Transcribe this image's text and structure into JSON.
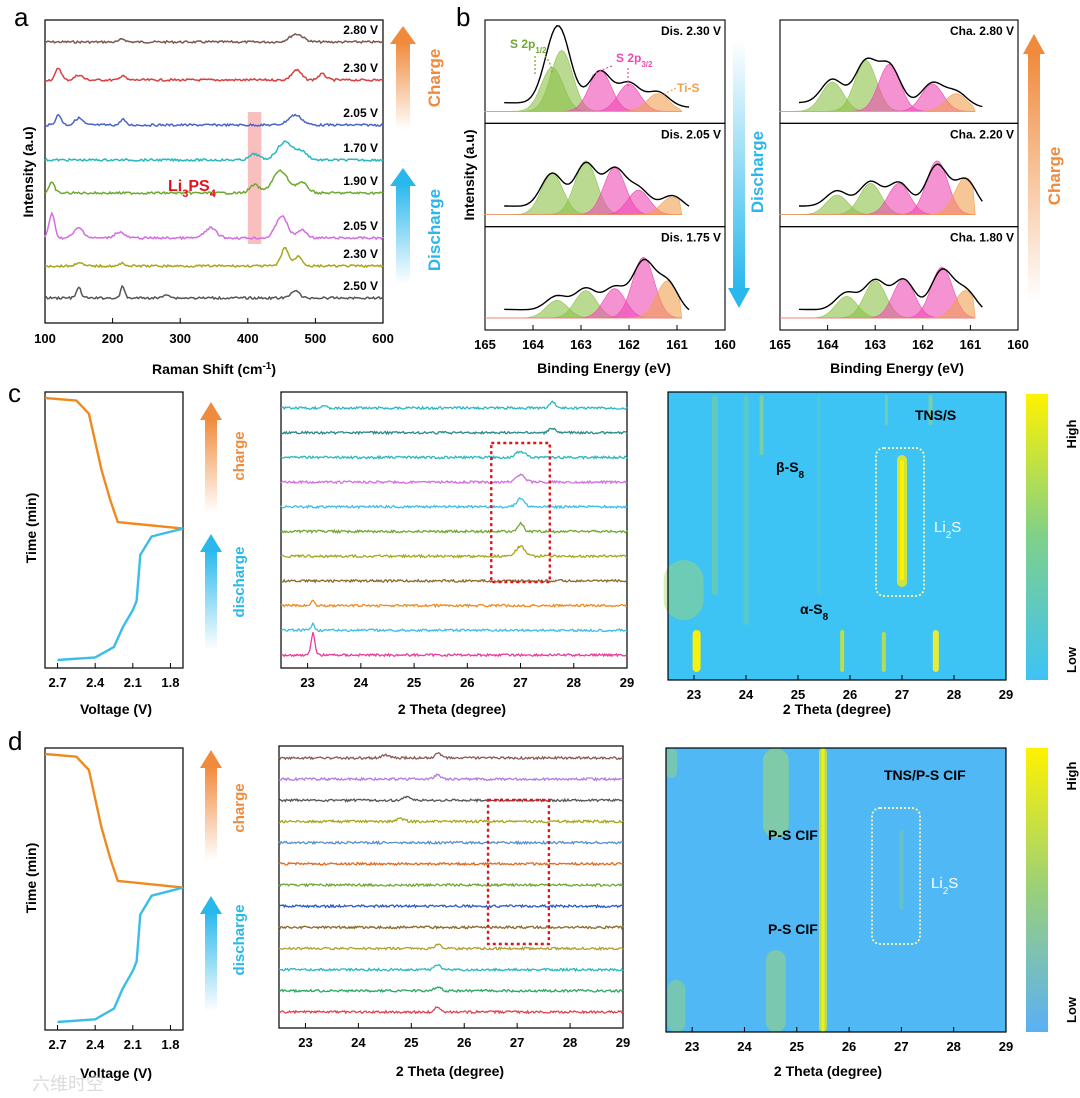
{
  "panel_letters": {
    "a": "a",
    "b": "b",
    "c": "c",
    "d": "d"
  },
  "arrows": {
    "charge_cap": "Charge",
    "discharge_cap": "Discharge",
    "charge_lc": "charge",
    "discharge_lc": "discharge"
  },
  "colors": {
    "charge_arrow": "#f08a3c",
    "discharge_arrow": "#2ab8ec",
    "heat_low": "#3ec3f5",
    "heat_high": "#fff200",
    "box_red": "#e0141c",
    "li3ps4_highlight": "#f7a9a9"
  },
  "watermark": "六维时空",
  "chart_data": [
    {
      "id": "a",
      "type": "line",
      "xlabel": "Raman Shift (cm",
      "xlabel_sup": "-1",
      "xlabel_end": ")",
      "ylabel": "Intensity (a.u)",
      "xlim": [
        100,
        600
      ],
      "xticks": [
        100,
        200,
        300,
        400,
        500,
        600
      ],
      "annotation": "Li3PS4",
      "annotation_main": "Li",
      "annotation_sub1": "3",
      "annotation_mid": "PS",
      "annotation_sub2": "4",
      "highlight_x": [
        400,
        420
      ],
      "series": [
        {
          "label": "2.80 V",
          "color": "#7a5a50",
          "peaks": [
            [
              215,
              3,
              6
            ],
            [
              472,
              8,
              14
            ]
          ]
        },
        {
          "label": "2.30 V",
          "color": "#d84040",
          "peaks": [
            [
              120,
              12,
              6
            ],
            [
              150,
              5,
              8
            ],
            [
              215,
              5,
              5
            ],
            [
              472,
              10,
              10
            ],
            [
              510,
              6,
              8
            ]
          ]
        },
        {
          "label": "2.05 V",
          "color": "#4866c8",
          "peaks": [
            [
              120,
              10,
              6
            ],
            [
              150,
              7,
              8
            ],
            [
              215,
              6,
              5
            ],
            [
              470,
              10,
              14
            ]
          ]
        },
        {
          "label": "1.70 V",
          "color": "#29b8c0",
          "peaks": [
            [
              410,
              6,
              10
            ],
            [
              455,
              18,
              16
            ],
            [
              480,
              8,
              12
            ]
          ]
        },
        {
          "label": "1.90 V",
          "color": "#6ea830",
          "peaks": [
            [
              110,
              10,
              6
            ],
            [
              410,
              8,
              10
            ],
            [
              448,
              22,
              16
            ],
            [
              480,
              10,
              12
            ]
          ]
        },
        {
          "label": "2.05 V",
          "color": "#d36ee0",
          "peaks": [
            [
              110,
              24,
              6
            ],
            [
              150,
              10,
              10
            ],
            [
              210,
              6,
              10
            ],
            [
              345,
              10,
              12
            ],
            [
              450,
              22,
              12
            ],
            [
              480,
              8,
              10
            ]
          ]
        },
        {
          "label": "2.30 V",
          "color": "#a8a61a",
          "peaks": [
            [
              150,
              4,
              6
            ],
            [
              215,
              3,
              5
            ],
            [
              455,
              18,
              8
            ],
            [
              475,
              10,
              8
            ]
          ]
        },
        {
          "label": "2.50 V",
          "color": "#555555",
          "peaks": [
            [
              150,
              10,
              5
            ],
            [
              215,
              12,
              4
            ],
            [
              280,
              4,
              6
            ],
            [
              470,
              8,
              8
            ]
          ]
        }
      ]
    },
    {
      "id": "b",
      "type": "area",
      "xlabel": "Binding Energy (eV)",
      "ylabel": "Intensity (a.u)",
      "xlim": [
        165,
        160
      ],
      "xticks": [
        165,
        164,
        163,
        162,
        161,
        160
      ],
      "label_s2p12": "S 2p",
      "label_s2p12_sub": "1/2",
      "label_s2p32": "S 2p",
      "label_s2p32_sub": "3/2",
      "label_tis": "Ti-S",
      "component_colors": {
        "s2p12": "#8cc24a",
        "s2p32": "#ee4ab4",
        "tis": "#f2a050"
      },
      "left": [
        {
          "label": "Dis. 2.30 V",
          "components": [
            [
              163.6,
              0.45
            ],
            [
              163.4,
              0.62
            ],
            [
              162.6,
              0.42
            ],
            [
              162.0,
              0.28
            ],
            [
              161.4,
              0.18
            ]
          ]
        },
        {
          "label": "Dis. 2.05 V",
          "components": [
            [
              163.6,
              0.42
            ],
            [
              162.9,
              0.55
            ],
            [
              162.3,
              0.48
            ],
            [
              161.8,
              0.25
            ],
            [
              161.1,
              0.18
            ]
          ]
        },
        {
          "label": "Dis. 1.75 V",
          "components": [
            [
              163.5,
              0.18
            ],
            [
              162.9,
              0.28
            ],
            [
              162.3,
              0.3
            ],
            [
              161.7,
              0.62
            ],
            [
              161.2,
              0.38
            ]
          ]
        }
      ],
      "right": [
        {
          "label": "Cha. 2.80 V",
          "components": [
            [
              163.9,
              0.3
            ],
            [
              163.2,
              0.52
            ],
            [
              162.7,
              0.48
            ],
            [
              161.8,
              0.28
            ],
            [
              161.3,
              0.18
            ]
          ]
        },
        {
          "label": "Cha. 2.20 V",
          "components": [
            [
              163.8,
              0.2
            ],
            [
              163.1,
              0.32
            ],
            [
              162.5,
              0.32
            ],
            [
              161.7,
              0.55
            ],
            [
              161.1,
              0.38
            ]
          ]
        },
        {
          "label": "Cha. 1.80 V",
          "components": [
            [
              163.6,
              0.22
            ],
            [
              163.0,
              0.38
            ],
            [
              162.4,
              0.4
            ],
            [
              161.6,
              0.52
            ],
            [
              161.1,
              0.28
            ]
          ]
        }
      ]
    },
    {
      "id": "c_voltage",
      "type": "line",
      "xlabel": "Voltage (V)",
      "ylabel": "Time (min)",
      "xlim": [
        2.8,
        1.7
      ],
      "xticks": [
        2.7,
        2.4,
        2.1,
        1.8
      ],
      "charge": [
        [
          2.8,
          0
        ],
        [
          2.55,
          0.02
        ],
        [
          2.45,
          0.12
        ],
        [
          2.35,
          0.55
        ],
        [
          2.28,
          0.78
        ],
        [
          2.22,
          0.95
        ],
        [
          1.7,
          1.0
        ]
      ],
      "discharge": [
        [
          1.7,
          0
        ],
        [
          1.95,
          0.06
        ],
        [
          2.04,
          0.2
        ],
        [
          2.07,
          0.55
        ],
        [
          2.1,
          0.62
        ],
        [
          2.18,
          0.75
        ],
        [
          2.25,
          0.9
        ],
        [
          2.4,
          0.98
        ],
        [
          2.7,
          1.0
        ]
      ]
    },
    {
      "id": "c_xrd",
      "type": "line",
      "xlabel": "2 Theta (degree)",
      "xlim": [
        22.5,
        29
      ],
      "xticks": [
        23,
        24,
        25,
        26,
        27,
        28,
        29
      ],
      "box_x": [
        26.45,
        27.55
      ],
      "colors": [
        "#e93a9a",
        "#3bbde8",
        "#ee8a1e",
        "#8a6a2a",
        "#a8a61a",
        "#6ea830",
        "#3bbde8",
        "#d36ee0",
        "#29b8c0",
        "#2a8a86",
        "#29b8c0"
      ],
      "peaks": [
        [
          [
            23.1,
            22,
            0.05
          ]
        ],
        [
          [
            23.1,
            6,
            0.05
          ]
        ],
        [
          [
            23.1,
            5,
            0.05
          ]
        ],
        [
          []
        ],
        [
          [
            27.0,
            10,
            0.12
          ]
        ],
        [
          [
            27.0,
            8,
            0.08
          ]
        ],
        [
          [
            27.0,
            8,
            0.1
          ]
        ],
        [
          [
            27.0,
            7,
            0.12
          ]
        ],
        [
          [
            27.0,
            6,
            0.12
          ]
        ],
        [
          [
            27.6,
            5,
            0.08
          ]
        ],
        [
          [
            27.6,
            6,
            0.08
          ],
          [
            23.3,
            3,
            0.06
          ]
        ]
      ]
    },
    {
      "id": "c_heatmap",
      "type": "heatmap",
      "xlabel": "2 Theta (degree)",
      "xlim": [
        22.5,
        29
      ],
      "xticks": [
        23,
        24,
        25,
        26,
        27,
        28,
        29
      ],
      "title": "TNS/S",
      "label_upper": "β-S",
      "label_upper_sub": "8",
      "label_lower": "α-S",
      "label_lower_sub": "8",
      "li2s": "Li",
      "li2s_sub": "2",
      "li2s_end": "S",
      "cbar_high": "High",
      "cbar_low": "Low"
    },
    {
      "id": "d_voltage",
      "type": "line",
      "xlabel": "Voltage (V)",
      "ylabel": "Time (min)",
      "xlim": [
        2.8,
        1.7
      ],
      "xticks": [
        2.7,
        2.4,
        2.1,
        1.8
      ],
      "charge": [
        [
          2.8,
          0
        ],
        [
          2.55,
          0.02
        ],
        [
          2.45,
          0.12
        ],
        [
          2.35,
          0.55
        ],
        [
          2.28,
          0.78
        ],
        [
          2.22,
          0.95
        ],
        [
          1.7,
          1.0
        ]
      ],
      "discharge": [
        [
          1.7,
          0
        ],
        [
          1.95,
          0.06
        ],
        [
          2.04,
          0.2
        ],
        [
          2.07,
          0.55
        ],
        [
          2.1,
          0.62
        ],
        [
          2.18,
          0.75
        ],
        [
          2.25,
          0.9
        ],
        [
          2.4,
          0.98
        ],
        [
          2.7,
          1.0
        ]
      ]
    },
    {
      "id": "d_xrd",
      "type": "line",
      "xlabel": "2 Theta (degree)",
      "xlim": [
        22.5,
        29
      ],
      "xticks": [
        23,
        24,
        25,
        26,
        27,
        28,
        29
      ],
      "box_x": [
        26.45,
        27.6
      ],
      "colors": [
        "#e04050",
        "#2aa860",
        "#29b8c0",
        "#b0a030",
        "#8a6a2a",
        "#2a5ac8",
        "#6ea830",
        "#e06a20",
        "#5a90c8",
        "#a8a61a",
        "#555555",
        "#b47ae0",
        "#8a5a50"
      ],
      "peaks": [
        [
          [
            25.5,
            5,
            0.08
          ]
        ],
        [
          [
            25.5,
            4,
            0.08
          ]
        ],
        [
          [
            25.5,
            5,
            0.08
          ]
        ],
        [
          [
            25.5,
            4,
            0.08
          ]
        ],
        [
          []
        ],
        [
          []
        ],
        [
          []
        ],
        [
          []
        ],
        [
          []
        ],
        [
          [
            24.8,
            3,
            0.1
          ]
        ],
        [
          [
            24.9,
            3,
            0.1
          ]
        ],
        [
          [
            25.5,
            4,
            0.1
          ]
        ],
        [
          [
            25.5,
            5,
            0.08
          ],
          [
            24.5,
            3,
            0.1
          ]
        ]
      ]
    },
    {
      "id": "d_heatmap",
      "type": "heatmap",
      "xlabel": "2 Theta (degree)",
      "xlim": [
        22.5,
        29
      ],
      "xticks": [
        23,
        24,
        25,
        26,
        27,
        28,
        29
      ],
      "title": "TNS/P-S CIF",
      "label_upper": "P-S CIF",
      "label_lower": "P-S CIF",
      "li2s": "Li",
      "li2s_sub": "2",
      "li2s_end": "S",
      "cbar_high": "High",
      "cbar_low": "Low"
    }
  ]
}
